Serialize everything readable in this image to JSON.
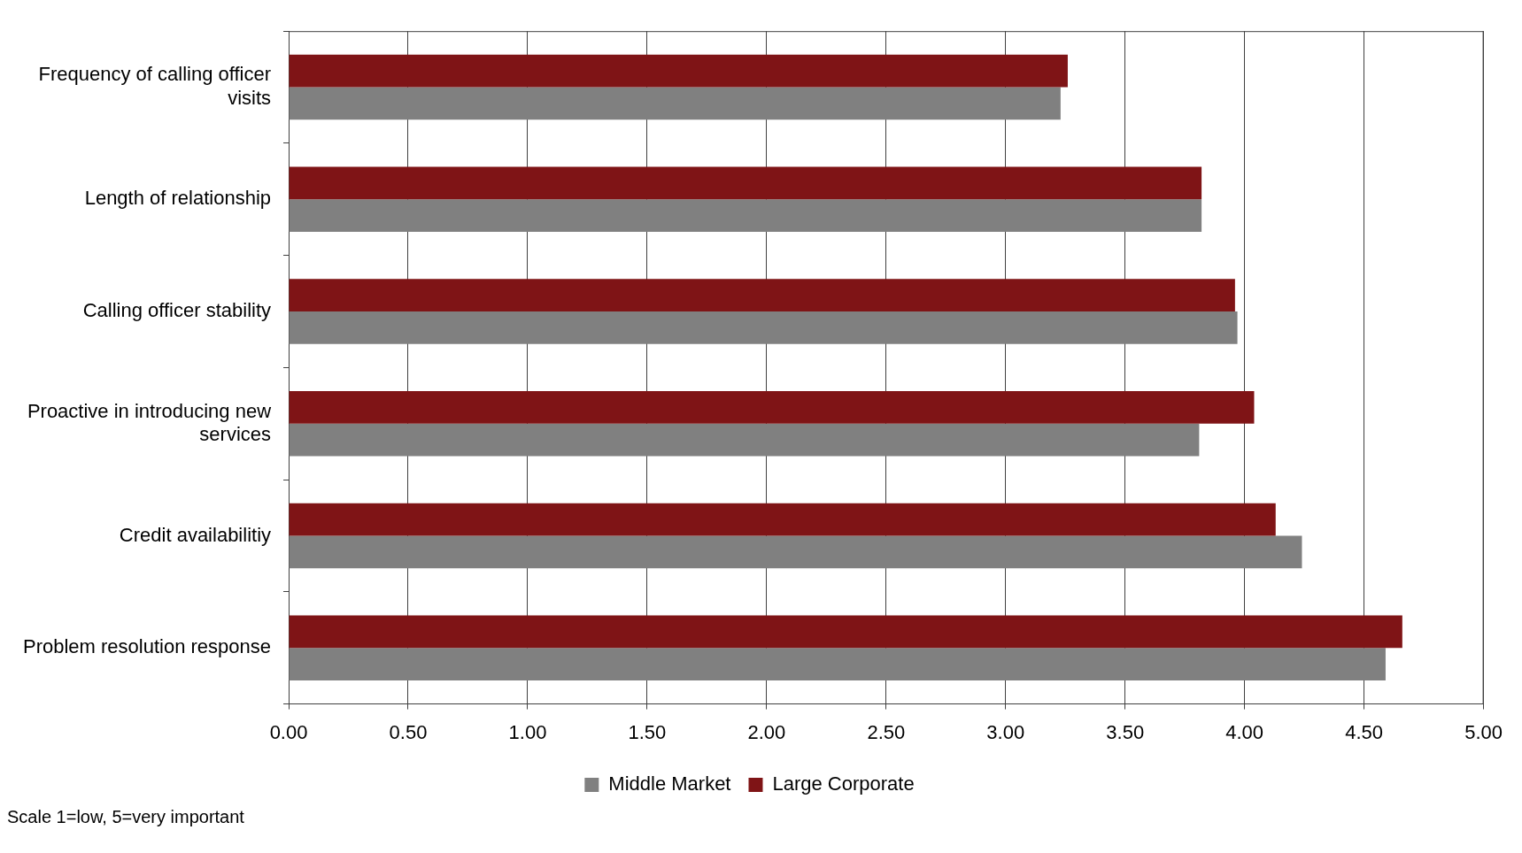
{
  "chart_data": {
    "type": "bar",
    "orientation": "horizontal",
    "categories": [
      "Frequency of calling officer visits",
      "Length of relationship",
      "Calling officer stability",
      "Proactive in introducing new services",
      "Credit availabilitiy",
      "Problem resolution response"
    ],
    "series": [
      {
        "name": "Middle Market",
        "color": "#808080",
        "values": [
          3.23,
          3.82,
          3.97,
          3.81,
          4.24,
          4.59
        ]
      },
      {
        "name": "Large Corporate",
        "color": "#7f1416",
        "values": [
          3.26,
          3.82,
          3.96,
          4.04,
          4.13,
          4.66
        ]
      }
    ],
    "xlim": [
      0,
      5
    ],
    "xticks": [
      {
        "value": 0,
        "label": "0.00"
      },
      {
        "value": 0.5,
        "label": "0.50"
      },
      {
        "value": 1,
        "label": "1.00"
      },
      {
        "value": 1.5,
        "label": "1.50"
      },
      {
        "value": 2,
        "label": "2.00"
      },
      {
        "value": 2.5,
        "label": "2.50"
      },
      {
        "value": 3,
        "label": "3.00"
      },
      {
        "value": 3.5,
        "label": "3.50"
      },
      {
        "value": 4,
        "label": "4.00"
      },
      {
        "value": 4.5,
        "label": "4.50"
      },
      {
        "value": 5,
        "label": "5.00"
      }
    ],
    "grid": "x",
    "legend": "bottom",
    "annotations": [
      "Scale 1=low, 5=very important"
    ]
  }
}
